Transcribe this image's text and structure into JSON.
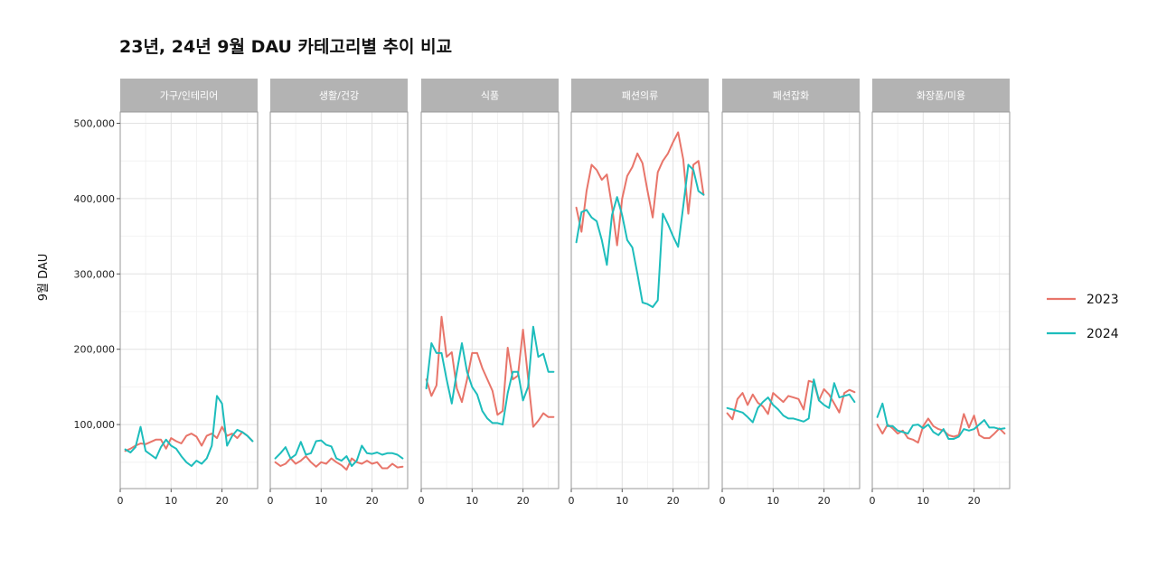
{
  "chart_data": {
    "type": "line",
    "title": "23년, 24년 9월 DAU 카테고리별 추이 비교",
    "xlabel": "",
    "ylabel": "9월 DAU",
    "xlim": [
      0,
      27
    ],
    "ylim": [
      15000,
      515000
    ],
    "x_ticks": [
      0,
      10,
      20
    ],
    "x_tick_labels": [
      "0",
      "10",
      "20"
    ],
    "y_ticks": [
      100000,
      200000,
      300000,
      400000,
      500000
    ],
    "y_tick_labels": [
      "100,000",
      "200,000",
      "300,000",
      "400,000",
      "500,000"
    ],
    "grid": true,
    "legend_position": "right",
    "legend": [
      {
        "name": "2023",
        "color": "#E8756A"
      },
      {
        "name": "2024",
        "color": "#1DBDBC"
      }
    ],
    "x": [
      1,
      2,
      3,
      4,
      5,
      6,
      7,
      8,
      9,
      10,
      11,
      12,
      13,
      14,
      15,
      16,
      17,
      18,
      19,
      20,
      21,
      22,
      23,
      24,
      25,
      26
    ],
    "facets": [
      {
        "label": "가구/인테리어",
        "series": [
          {
            "name": "2023",
            "values": [
              65000,
              68000,
              72000,
              75000,
              74000,
              77000,
              80000,
              80000,
              68000,
              82000,
              78000,
              75000,
              85000,
              88000,
              84000,
              72000,
              85000,
              88000,
              82000,
              97000,
              85000,
              88000,
              82000,
              90000,
              85000,
              78000
            ]
          },
          {
            "name": "2024",
            "values": [
              67000,
              63000,
              70000,
              97000,
              65000,
              60000,
              55000,
              70000,
              80000,
              72000,
              68000,
              58000,
              50000,
              45000,
              52000,
              48000,
              55000,
              72000,
              138000,
              128000,
              72000,
              85000,
              93000,
              90000,
              85000,
              78000
            ]
          }
        ]
      },
      {
        "label": "생활/건강",
        "series": [
          {
            "name": "2023",
            "values": [
              50000,
              45000,
              48000,
              55000,
              48000,
              52000,
              58000,
              50000,
              44000,
              50000,
              48000,
              55000,
              50000,
              46000,
              40000,
              55000,
              50000,
              48000,
              52000,
              48000,
              50000,
              42000,
              42000,
              48000,
              43000,
              44000
            ]
          },
          {
            "name": "2024",
            "values": [
              55000,
              62000,
              70000,
              55000,
              60000,
              77000,
              60000,
              62000,
              78000,
              79000,
              73000,
              71000,
              55000,
              52000,
              58000,
              45000,
              52000,
              72000,
              62000,
              61000,
              63000,
              60000,
              62000,
              62000,
              60000,
              55000
            ]
          }
        ]
      },
      {
        "label": "식품",
        "series": [
          {
            "name": "2023",
            "values": [
              160000,
              138000,
              152000,
              243000,
              190000,
              196000,
              148000,
              130000,
              160000,
              195000,
              195000,
              175000,
              160000,
              145000,
              113000,
              118000,
              202000,
              160000,
              165000,
              226000,
              162000,
              97000,
              105000,
              115000,
              110000,
              110000
            ]
          },
          {
            "name": "2024",
            "values": [
              148000,
              208000,
              195000,
              195000,
              160000,
              128000,
              170000,
              208000,
              170000,
              150000,
              140000,
              118000,
              108000,
              102000,
              102000,
              100000,
              142000,
              170000,
              170000,
              132000,
              150000,
              230000,
              190000,
              194000,
              170000,
              170000
            ]
          }
        ]
      },
      {
        "label": "패션의류",
        "series": [
          {
            "name": "2023",
            "values": [
              388000,
              356000,
              410000,
              445000,
              438000,
              425000,
              432000,
              390000,
              338000,
              400000,
              430000,
              442000,
              460000,
              447000,
              410000,
              375000,
              435000,
              450000,
              460000,
              475000,
              488000,
              452000,
              380000,
              445000,
              450000,
              405000
            ]
          },
          {
            "name": "2024",
            "values": [
              342000,
              382000,
              385000,
              375000,
              370000,
              345000,
              312000,
              378000,
              402000,
              378000,
              345000,
              335000,
              300000,
              262000,
              260000,
              256000,
              265000,
              380000,
              366000,
              350000,
              336000,
              390000,
              445000,
              438000,
              410000,
              405000
            ]
          }
        ]
      },
      {
        "label": "패션잡화",
        "series": [
          {
            "name": "2023",
            "values": [
              115000,
              107000,
              134000,
              142000,
              126000,
              140000,
              129000,
              124000,
              114000,
              142000,
              136000,
              130000,
              138000,
              136000,
              134000,
              120000,
              158000,
              156000,
              132000,
              147000,
              140000,
              128000,
              116000,
              142000,
              146000,
              143000
            ]
          },
          {
            "name": "2024",
            "values": [
              122000,
              120000,
              118000,
              116000,
              110000,
              103000,
              122000,
              130000,
              136000,
              126000,
              120000,
              112000,
              108000,
              108000,
              106000,
              104000,
              108000,
              160000,
              132000,
              126000,
              122000,
              155000,
              136000,
              138000,
              140000,
              130000
            ]
          }
        ]
      },
      {
        "label": "화장품/미용",
        "series": [
          {
            "name": "2023",
            "values": [
              100000,
              88000,
              100000,
              95000,
              88000,
              92000,
              82000,
              80000,
              76000,
              98000,
              108000,
              98000,
              94000,
              92000,
              86000,
              84000,
              86000,
              114000,
              96000,
              112000,
              86000,
              82000,
              82000,
              88000,
              95000,
              88000
            ]
          },
          {
            "name": "2024",
            "values": [
              110000,
              128000,
              98000,
              98000,
              92000,
              90000,
              88000,
              99000,
              100000,
              95000,
              100000,
              90000,
              86000,
              94000,
              81000,
              81000,
              84000,
              94000,
              92000,
              94000,
              100000,
              106000,
              96000,
              96000,
              94000,
              95000
            ]
          }
        ]
      }
    ]
  }
}
